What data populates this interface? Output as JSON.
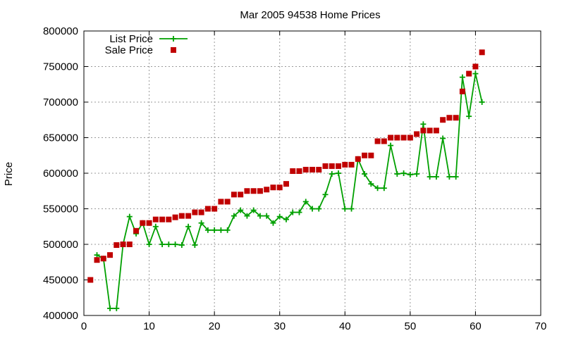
{
  "chart_data": {
    "type": "line",
    "title": "Mar 2005 94538 Home Prices",
    "xlabel": "",
    "ylabel": "Price",
    "xlim": [
      0,
      70
    ],
    "ylim": [
      400000,
      800000
    ],
    "x_ticks": [
      0,
      10,
      20,
      30,
      40,
      50,
      60,
      70
    ],
    "y_ticks": [
      400000,
      450000,
      500000,
      550000,
      600000,
      650000,
      700000,
      750000,
      800000
    ],
    "grid": true,
    "legend_position": "top-left",
    "series": [
      {
        "name": "List Price",
        "style": "line-plus",
        "color": "#00a000",
        "points": [
          [
            2,
            485000
          ],
          [
            3,
            480000
          ],
          [
            4,
            410000
          ],
          [
            5,
            410000
          ],
          [
            6,
            500000
          ],
          [
            7,
            539000
          ],
          [
            8,
            515000
          ],
          [
            9,
            530000
          ],
          [
            10,
            500000
          ],
          [
            11,
            525000
          ],
          [
            12,
            500000
          ],
          [
            13,
            500000
          ],
          [
            14,
            500000
          ],
          [
            15,
            499000
          ],
          [
            16,
            525000
          ],
          [
            17,
            499000
          ],
          [
            18,
            530000
          ],
          [
            19,
            520000
          ],
          [
            20,
            520000
          ],
          [
            21,
            520000
          ],
          [
            22,
            520000
          ],
          [
            23,
            540000
          ],
          [
            24,
            548000
          ],
          [
            25,
            540000
          ],
          [
            26,
            548000
          ],
          [
            27,
            540000
          ],
          [
            28,
            540000
          ],
          [
            29,
            530000
          ],
          [
            30,
            539000
          ],
          [
            31,
            535000
          ],
          [
            32,
            545000
          ],
          [
            33,
            545000
          ],
          [
            34,
            560000
          ],
          [
            35,
            550000
          ],
          [
            36,
            550000
          ],
          [
            37,
            570000
          ],
          [
            38,
            599000
          ],
          [
            39,
            600000
          ],
          [
            40,
            550000
          ],
          [
            41,
            550000
          ],
          [
            42,
            620000
          ],
          [
            43,
            599000
          ],
          [
            44,
            585000
          ],
          [
            45,
            579000
          ],
          [
            46,
            579000
          ],
          [
            47,
            639000
          ],
          [
            48,
            599000
          ],
          [
            49,
            600000
          ],
          [
            50,
            598000
          ],
          [
            51,
            599000
          ],
          [
            52,
            669000
          ],
          [
            53,
            595000
          ],
          [
            54,
            595000
          ],
          [
            55,
            649000
          ],
          [
            56,
            595000
          ],
          [
            57,
            595000
          ],
          [
            58,
            735000
          ],
          [
            59,
            680000
          ],
          [
            60,
            740000
          ],
          [
            61,
            700000
          ]
        ]
      },
      {
        "name": "Sale Price",
        "style": "squares",
        "color": "#c00000",
        "points": [
          [
            1,
            450000
          ],
          [
            2,
            478000
          ],
          [
            3,
            480000
          ],
          [
            4,
            485000
          ],
          [
            5,
            499000
          ],
          [
            6,
            500000
          ],
          [
            7,
            500000
          ],
          [
            8,
            519000
          ],
          [
            9,
            530000
          ],
          [
            10,
            530000
          ],
          [
            11,
            535000
          ],
          [
            12,
            535000
          ],
          [
            13,
            535000
          ],
          [
            14,
            538000
          ],
          [
            15,
            540000
          ],
          [
            16,
            540000
          ],
          [
            17,
            545000
          ],
          [
            18,
            545000
          ],
          [
            19,
            550000
          ],
          [
            20,
            550000
          ],
          [
            21,
            560000
          ],
          [
            22,
            560000
          ],
          [
            23,
            570000
          ],
          [
            24,
            570000
          ],
          [
            25,
            575000
          ],
          [
            26,
            575000
          ],
          [
            27,
            575000
          ],
          [
            28,
            577000
          ],
          [
            29,
            580000
          ],
          [
            30,
            580000
          ],
          [
            31,
            585000
          ],
          [
            32,
            603000
          ],
          [
            33,
            603000
          ],
          [
            34,
            605000
          ],
          [
            35,
            605000
          ],
          [
            36,
            605000
          ],
          [
            37,
            610000
          ],
          [
            38,
            610000
          ],
          [
            39,
            610000
          ],
          [
            40,
            612000
          ],
          [
            41,
            612000
          ],
          [
            42,
            620000
          ],
          [
            43,
            625000
          ],
          [
            44,
            625000
          ],
          [
            45,
            645000
          ],
          [
            46,
            645000
          ],
          [
            47,
            650000
          ],
          [
            48,
            650000
          ],
          [
            49,
            650000
          ],
          [
            50,
            650000
          ],
          [
            51,
            655000
          ],
          [
            52,
            660000
          ],
          [
            53,
            660000
          ],
          [
            54,
            660000
          ],
          [
            55,
            675000
          ],
          [
            56,
            678000
          ],
          [
            57,
            678000
          ],
          [
            58,
            715000
          ],
          [
            59,
            740000
          ],
          [
            60,
            750000
          ],
          [
            61,
            770000
          ]
        ]
      }
    ]
  }
}
